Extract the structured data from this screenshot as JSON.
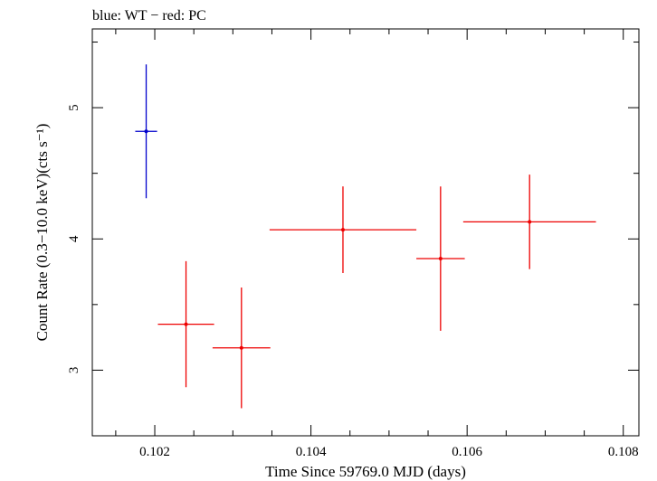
{
  "chart_data": {
    "type": "scatter",
    "title": "blue: WT − red: PC",
    "xlabel": "Time Since 59769.0 MJD (days)",
    "ylabel": "Count Rate (0.3−10.0 keV)(cts s⁻¹)",
    "xlim": [
      0.1012,
      0.1082
    ],
    "ylim": [
      2.5,
      5.6
    ],
    "x_ticks": [
      0.102,
      0.104,
      0.106,
      0.108
    ],
    "x_tick_labels": [
      "0.102",
      "0.104",
      "0.106",
      "0.108"
    ],
    "y_ticks": [
      3,
      4,
      5
    ],
    "y_tick_labels": [
      "3",
      "4",
      "5"
    ],
    "grid": false,
    "series": [
      {
        "name": "WT",
        "color": "#0000cc",
        "points": [
          {
            "x": 0.10189,
            "xerr_lo": 0.00014,
            "xerr_hi": 0.00014,
            "y": 4.82,
            "yerr_lo": 0.51,
            "yerr_hi": 0.51
          }
        ]
      },
      {
        "name": "PC",
        "color": "#ee0000",
        "points": [
          {
            "x": 0.1024,
            "xerr_lo": 0.00036,
            "xerr_hi": 0.00036,
            "y": 3.35,
            "yerr_lo": 0.48,
            "yerr_hi": 0.48
          },
          {
            "x": 0.10311,
            "xerr_lo": 0.00037,
            "xerr_hi": 0.00037,
            "y": 3.17,
            "yerr_lo": 0.46,
            "yerr_hi": 0.46
          },
          {
            "x": 0.10441,
            "xerr_lo": 0.00094,
            "xerr_hi": 0.00094,
            "y": 4.07,
            "yerr_lo": 0.33,
            "yerr_hi": 0.33
          },
          {
            "x": 0.10566,
            "xerr_lo": 0.00031,
            "xerr_hi": 0.00031,
            "y": 3.85,
            "yerr_lo": 0.55,
            "yerr_hi": 0.55
          },
          {
            "x": 0.1068,
            "xerr_lo": 0.00085,
            "xerr_hi": 0.00085,
            "y": 4.13,
            "yerr_lo": 0.36,
            "yerr_hi": 0.36
          }
        ]
      }
    ]
  }
}
